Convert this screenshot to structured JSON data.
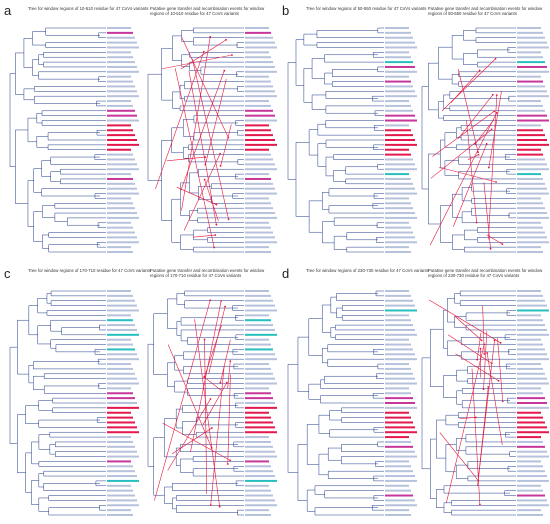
{
  "panels": [
    {
      "letter": "a",
      "tree_title": "Tree for window regions of 10-510 residue for 47 CoVs variants",
      "hgt_title": "Putative gene transfer and recombination events for window regions of 10-510 residue for 47 CoVs variants"
    },
    {
      "letter": "b",
      "tree_title": "Tree for window regions of 50-550 residue for 47 CoVs variants",
      "hgt_title": "Putative gene transfer and recombination events for window regions of 50-550 residue for 47 CoVs variants"
    },
    {
      "letter": "c",
      "tree_title": "Tree for window regions of 170-710 residue for 47 CoVs variants",
      "hgt_title": "Putative gene transfer and recombination events for window regions of 170-710 residue for 47 CoVs variants"
    },
    {
      "letter": "d",
      "tree_title": "Tree for window regions of 230-730 residue for 47 CoVs variants",
      "hgt_title": "Putative gene transfer and recombination events for window regions of 230-730 residue for 47 CoVs variants"
    }
  ],
  "colors": {
    "branch": "#1f3a8a",
    "leaf_label": "#7a8fc0",
    "highlight_red": "#e0003a",
    "highlight_magenta": "#c02090",
    "highlight_cyan": "#10b8b8",
    "transfer_arrow": "#e8163c"
  }
}
